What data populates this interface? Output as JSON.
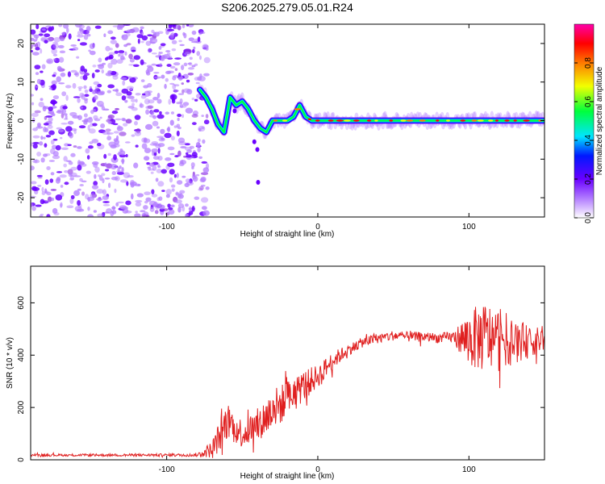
{
  "title": "S206.2025.279.05.01.R24",
  "colors": {
    "snr_line": "#e02020",
    "cb_0": "#ffffff",
    "cb_1": "#b27cff",
    "cb_2": "#6a00ff",
    "cb_3": "#0018ff",
    "cb_4": "#00e5ff",
    "cb_5": "#00ff3c",
    "cb_6": "#f2ff00",
    "cb_7": "#ff7a00",
    "cb_8": "#ff0000",
    "cb_9": "#ff00aa"
  },
  "chart_data": [
    {
      "type": "heatmap",
      "xlabel": "Height of straight line (km)",
      "ylabel": "Frequency (Hz)",
      "xlim": [
        -190,
        150
      ],
      "ylim": [
        -25,
        25
      ],
      "x_ticks": [
        -100,
        0,
        100
      ],
      "x_tick_labels": [
        "-100",
        "0",
        "100"
      ],
      "y_ticks": [
        -20,
        -10,
        0,
        10,
        20
      ],
      "y_tick_labels": [
        "-20",
        "-10",
        "0",
        "10",
        "20"
      ],
      "colorbar": {
        "label": "Normalized spectral amplitude",
        "range": [
          0,
          1
        ],
        "ticks": [
          0.0,
          0.2,
          0.4,
          0.6,
          0.8
        ],
        "tick_labels": [
          "0.0",
          "0.2",
          "0.4",
          "0.6",
          "0.8"
        ]
      },
      "noise_region_x": [
        -190,
        -76
      ],
      "signal_path": {
        "x": [
          -78,
          -74,
          -70,
          -66,
          -62,
          -58,
          -54,
          -50,
          -46,
          -42,
          -38,
          -34,
          -30,
          -26,
          -20,
          -16,
          -12,
          -8,
          -4,
          0,
          20,
          60,
          100,
          150
        ],
        "y": [
          8,
          6,
          3,
          -1,
          -3,
          6,
          4,
          5,
          3,
          0,
          -2,
          -3,
          0,
          0,
          0,
          1,
          4,
          1,
          0,
          0,
          0,
          0,
          0,
          0
        ]
      }
    },
    {
      "type": "line",
      "xlabel": "Height of straight line (km)",
      "ylabel": "SNR (10 * v/v)",
      "xlim": [
        -190,
        150
      ],
      "ylim": [
        0,
        740
      ],
      "x_ticks": [
        -100,
        0,
        100
      ],
      "x_tick_labels": [
        "-100",
        "0",
        "100"
      ],
      "y_ticks": [
        0,
        200,
        400,
        600
      ],
      "y_tick_labels": [
        "0",
        "200",
        "400",
        "600"
      ],
      "envelope": {
        "x": [
          -190,
          -80,
          -70,
          -65,
          -60,
          -50,
          -40,
          -30,
          -20,
          -10,
          0,
          10,
          20,
          30,
          40,
          50,
          60,
          70,
          80,
          90,
          100,
          110,
          120,
          130,
          140,
          150
        ],
        "mean": [
          18,
          18,
          40,
          90,
          150,
          100,
          130,
          190,
          230,
          280,
          320,
          380,
          420,
          450,
          465,
          475,
          470,
          470,
          465,
          470,
          460,
          470,
          460,
          455,
          450,
          460
        ],
        "amp": [
          8,
          10,
          60,
          110,
          130,
          100,
          120,
          150,
          130,
          110,
          80,
          60,
          40,
          35,
          35,
          35,
          35,
          35,
          35,
          40,
          200,
          250,
          220,
          160,
          110,
          80
        ]
      }
    }
  ]
}
